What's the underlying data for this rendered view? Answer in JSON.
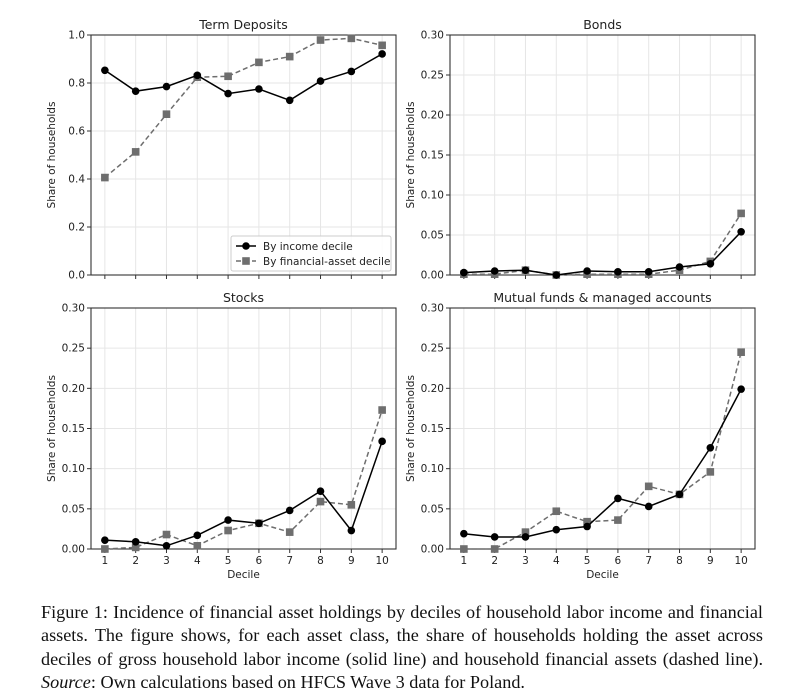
{
  "chart_data": [
    {
      "type": "line",
      "title": "Term Deposits",
      "xlabel": "",
      "ylabel": "Share of households",
      "x": [
        1,
        2,
        3,
        4,
        5,
        6,
        7,
        8,
        9,
        10
      ],
      "ylim": [
        0,
        1.0
      ],
      "yticks": [
        "0.0",
        "0.2",
        "0.4",
        "0.6",
        "0.8",
        "1.0"
      ],
      "ytick_values": [
        0,
        0.2,
        0.4,
        0.6,
        0.8,
        1.0
      ],
      "xtick_labels_shown": false,
      "grid": true,
      "legend": {
        "placement": "lower-right",
        "entries": [
          "By income decile",
          "By financial-asset decile"
        ]
      },
      "series": [
        {
          "name": "By income decile",
          "style": "solid",
          "marker": "circle",
          "values": [
            0.853,
            0.766,
            0.785,
            0.832,
            0.756,
            0.775,
            0.728,
            0.808,
            0.848,
            0.921
          ]
        },
        {
          "name": "By financial-asset decile",
          "style": "dashed",
          "marker": "square",
          "values": [
            0.406,
            0.513,
            0.67,
            0.824,
            0.828,
            0.886,
            0.91,
            0.979,
            0.986,
            0.957
          ]
        }
      ]
    },
    {
      "type": "line",
      "title": "Bonds",
      "xlabel": "",
      "ylabel": "Share of households",
      "x": [
        1,
        2,
        3,
        4,
        5,
        6,
        7,
        8,
        9,
        10
      ],
      "ylim": [
        0,
        0.3
      ],
      "yticks": [
        "0.00",
        "0.05",
        "0.10",
        "0.15",
        "0.20",
        "0.25",
        "0.30"
      ],
      "ytick_values": [
        0,
        0.05,
        0.1,
        0.15,
        0.2,
        0.25,
        0.3
      ],
      "xtick_labels_shown": false,
      "grid": true,
      "series": [
        {
          "name": "By income decile",
          "style": "solid",
          "marker": "circle",
          "values": [
            0.003,
            0.005,
            0.006,
            0.0,
            0.005,
            0.004,
            0.004,
            0.01,
            0.014,
            0.054
          ]
        },
        {
          "name": "By financial-asset decile",
          "style": "dashed",
          "marker": "square",
          "values": [
            0.001,
            0.001,
            0.006,
            0.0,
            0.001,
            0.001,
            0.001,
            0.006,
            0.017,
            0.077
          ]
        }
      ]
    },
    {
      "type": "line",
      "title": "Stocks",
      "xlabel": "Decile",
      "ylabel": "Share of households",
      "x": [
        1,
        2,
        3,
        4,
        5,
        6,
        7,
        8,
        9,
        10
      ],
      "xticks": [
        "1",
        "2",
        "3",
        "4",
        "5",
        "6",
        "7",
        "8",
        "9",
        "10"
      ],
      "ylim": [
        0,
        0.3
      ],
      "yticks": [
        "0.00",
        "0.05",
        "0.10",
        "0.15",
        "0.20",
        "0.25",
        "0.30"
      ],
      "ytick_values": [
        0,
        0.05,
        0.1,
        0.15,
        0.2,
        0.25,
        0.3
      ],
      "xtick_labels_shown": true,
      "grid": true,
      "series": [
        {
          "name": "By income decile",
          "style": "solid",
          "marker": "circle",
          "values": [
            0.011,
            0.009,
            0.004,
            0.017,
            0.036,
            0.032,
            0.048,
            0.072,
            0.023,
            0.134
          ]
        },
        {
          "name": "By financial-asset decile",
          "style": "dashed",
          "marker": "square",
          "values": [
            0.0,
            0.002,
            0.018,
            0.004,
            0.023,
            0.032,
            0.021,
            0.059,
            0.055,
            0.173
          ]
        }
      ]
    },
    {
      "type": "line",
      "title": "Mutual funds & managed accounts",
      "xlabel": "Decile",
      "ylabel": "Share of households",
      "x": [
        1,
        2,
        3,
        4,
        5,
        6,
        7,
        8,
        9,
        10
      ],
      "xticks": [
        "1",
        "2",
        "3",
        "4",
        "5",
        "6",
        "7",
        "8",
        "9",
        "10"
      ],
      "ylim": [
        0,
        0.3
      ],
      "yticks": [
        "0.00",
        "0.05",
        "0.10",
        "0.15",
        "0.20",
        "0.25",
        "0.30"
      ],
      "ytick_values": [
        0,
        0.05,
        0.1,
        0.15,
        0.2,
        0.25,
        0.3
      ],
      "xtick_labels_shown": true,
      "grid": true,
      "series": [
        {
          "name": "By income decile",
          "style": "solid",
          "marker": "circle",
          "values": [
            0.019,
            0.015,
            0.015,
            0.024,
            0.028,
            0.063,
            0.053,
            0.068,
            0.126,
            0.199
          ]
        },
        {
          "name": "By financial-asset decile",
          "style": "dashed",
          "marker": "square",
          "values": [
            0.0,
            0.0,
            0.021,
            0.047,
            0.034,
            0.036,
            0.078,
            0.068,
            0.096,
            0.245
          ]
        }
      ]
    }
  ],
  "colors": {
    "income": "#000000",
    "asset": "#6e6e6e",
    "grid": "#e6e6e6",
    "axis": "#333333"
  },
  "caption": {
    "part1": "Figure 1:  Incidence of financial asset holdings by deciles of household labor income and financial assets.  The figure shows, for each asset class, the share of households holding the asset across deciles of gross household labor income (solid line) and household financial assets (dashed line). ",
    "source_label": "Source",
    "part2": ": Own calculations based on HFCS Wave 3 data for Poland."
  }
}
